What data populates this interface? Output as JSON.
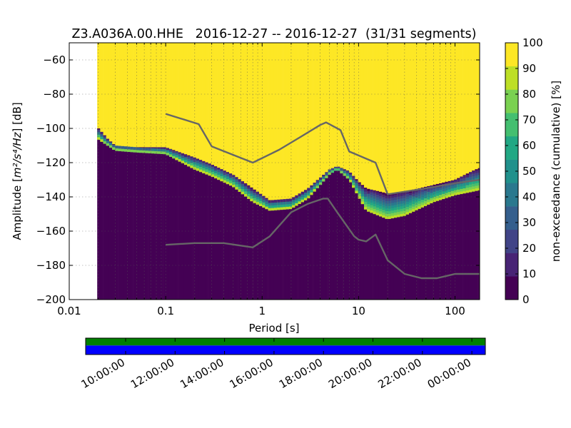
{
  "chart_data": {
    "type": "heatmap",
    "title": "Z3.A036A.00.HHE   2016-12-27 -- 2016-12-27  (31/31 segments)",
    "xlabel": "Period [s]",
    "ylabel_prefix": "Amplitude [",
    "ylabel_units": "m²/s⁴/Hz",
    "ylabel_suffix": "] [dB]",
    "x_scale": "log",
    "xlim": [
      0.01,
      180
    ],
    "ylim": [
      -200,
      -50
    ],
    "grid": true,
    "x_ticks": [
      {
        "value": 0.01,
        "label": "0.01"
      },
      {
        "value": 0.1,
        "label": "0.1"
      },
      {
        "value": 1,
        "label": "1"
      },
      {
        "value": 10,
        "label": "10"
      },
      {
        "value": 100,
        "label": "100"
      }
    ],
    "y_ticks": [
      {
        "value": -60,
        "label": "−60"
      },
      {
        "value": -80,
        "label": "−80"
      },
      {
        "value": -100,
        "label": "−100"
      },
      {
        "value": -120,
        "label": "−120"
      },
      {
        "value": -140,
        "label": "−140"
      },
      {
        "value": -160,
        "label": "−160"
      },
      {
        "value": -180,
        "label": "−180"
      },
      {
        "value": -200,
        "label": "−200"
      }
    ],
    "colorbar": {
      "label": "non-exceedance (cumulative) [%]",
      "range": [
        0,
        100
      ],
      "ticks": [
        {
          "value": 0,
          "label": "0"
        },
        {
          "value": 10,
          "label": "10"
        },
        {
          "value": 20,
          "label": "20"
        },
        {
          "value": 30,
          "label": "30"
        },
        {
          "value": 40,
          "label": "40"
        },
        {
          "value": 50,
          "label": "50"
        },
        {
          "value": 60,
          "label": "60"
        },
        {
          "value": 70,
          "label": "70"
        },
        {
          "value": 80,
          "label": "80"
        },
        {
          "value": 90,
          "label": "90"
        },
        {
          "value": 100,
          "label": "100"
        }
      ],
      "colors": [
        "#440154",
        "#482475",
        "#414487",
        "#355f8d",
        "#2a788e",
        "#21918c",
        "#22a884",
        "#44bf70",
        "#7ad151",
        "#bddf26",
        "#fde725"
      ]
    },
    "data_xmin": 0.0195,
    "transition": [
      {
        "x": 0.0195,
        "low": -106,
        "high": -99
      },
      {
        "x": 0.025,
        "low": -110,
        "high": -106
      },
      {
        "x": 0.03,
        "low": -113,
        "high": -110
      },
      {
        "x": 0.05,
        "low": -114,
        "high": -111
      },
      {
        "x": 0.1,
        "low": -115,
        "high": -111
      },
      {
        "x": 0.2,
        "low": -124,
        "high": -117
      },
      {
        "x": 0.3,
        "low": -128,
        "high": -121
      },
      {
        "x": 0.5,
        "low": -134,
        "high": -127
      },
      {
        "x": 0.8,
        "low": -143,
        "high": -135
      },
      {
        "x": 1.2,
        "low": -148,
        "high": -142
      },
      {
        "x": 2,
        "low": -147,
        "high": -141
      },
      {
        "x": 3,
        "low": -141,
        "high": -135
      },
      {
        "x": 5,
        "low": -127,
        "high": -124
      },
      {
        "x": 6,
        "low": -124,
        "high": -122
      },
      {
        "x": 8,
        "low": -130,
        "high": -125
      },
      {
        "x": 10,
        "low": -140,
        "high": -131
      },
      {
        "x": 12,
        "low": -148,
        "high": -135
      },
      {
        "x": 20,
        "low": -153,
        "high": -138
      },
      {
        "x": 30,
        "low": -151,
        "high": -137
      },
      {
        "x": 60,
        "low": -143,
        "high": -133
      },
      {
        "x": 100,
        "low": -139,
        "high": -130
      },
      {
        "x": 150,
        "low": -137,
        "high": -125
      },
      {
        "x": 180,
        "low": -136,
        "high": -123
      }
    ],
    "series": [
      {
        "x": [
          0.1,
          0.22,
          0.3,
          0.8,
          1.5,
          2.5,
          4,
          4.6,
          6.5,
          8,
          15,
          20,
          50,
          100,
          180
        ],
        "y": [
          -91.5,
          -97.5,
          -110.5,
          -120,
          -112.5,
          -105,
          -98,
          -96.5,
          -101,
          -113.5,
          -120,
          -138.5,
          -135,
          -132,
          -130
        ]
      },
      {
        "x": [
          0.1,
          0.2,
          0.3,
          0.4,
          0.8,
          1.2,
          2,
          3,
          4.3,
          4.8,
          6,
          9,
          10,
          12,
          15,
          20,
          30,
          45,
          65,
          100,
          180
        ],
        "y": [
          -168,
          -167,
          -167,
          -167,
          -169.5,
          -163,
          -149,
          -144,
          -141,
          -141,
          -149,
          -163,
          -165,
          -166,
          -162,
          -177,
          -185,
          -187.5,
          -187.5,
          -185,
          -185
        ]
      }
    ],
    "timeline": {
      "ticks": [
        "10:00:00",
        "12:00:00",
        "14:00:00",
        "16:00:00",
        "18:00:00",
        "20:00:00",
        "22:00:00",
        "00:00:00"
      ],
      "top_color": "#008000",
      "bottom_color": "#0000ff"
    }
  }
}
